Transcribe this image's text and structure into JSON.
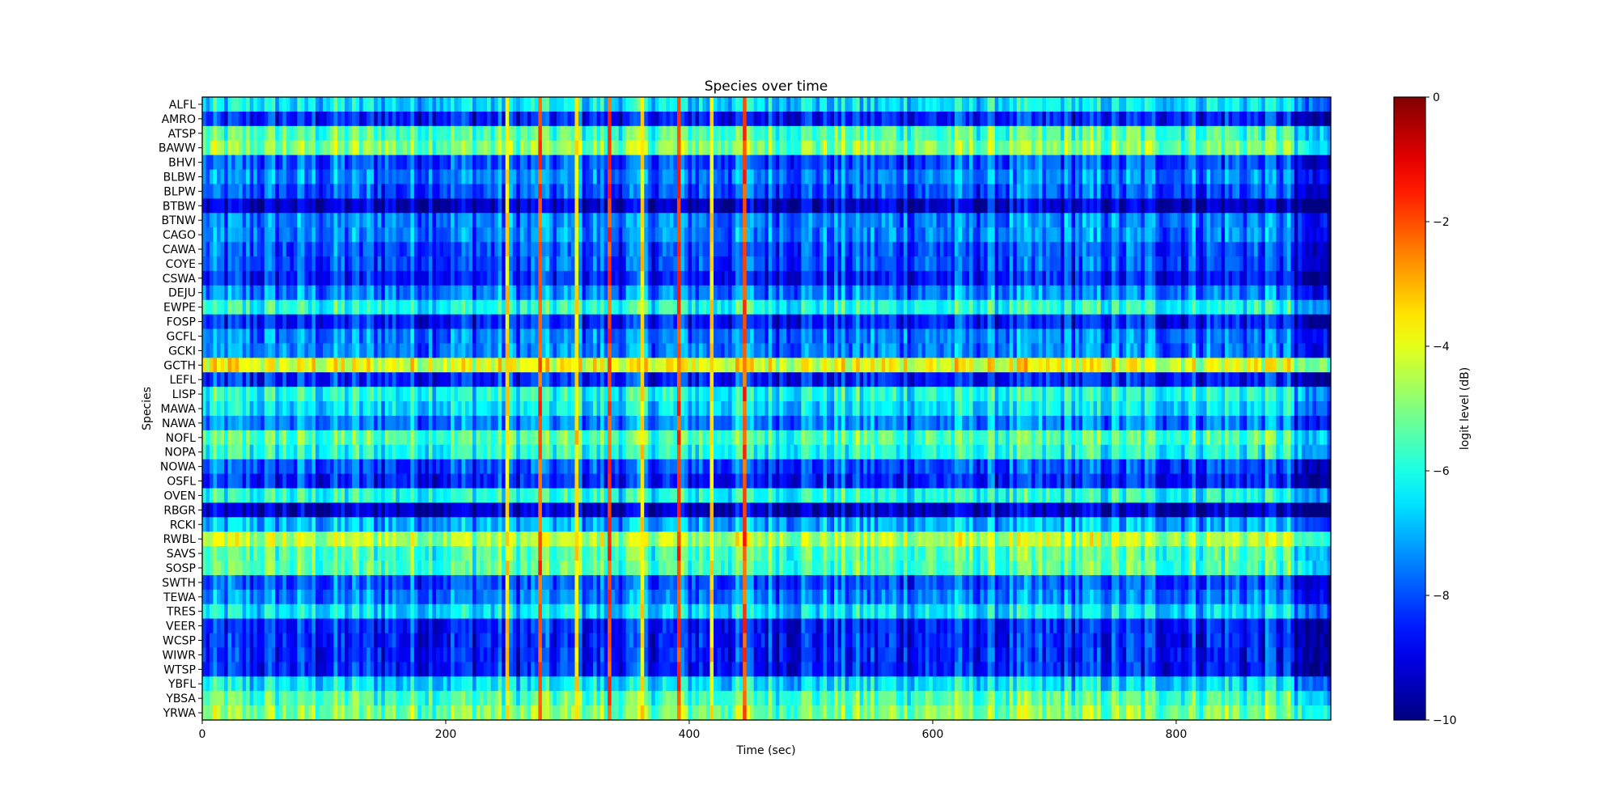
{
  "chart_data": {
    "type": "heatmap",
    "title": "Species over time",
    "xlabel": "Time (sec)",
    "ylabel": "Species",
    "xlim": [
      0,
      927
    ],
    "xticks": [
      0,
      200,
      400,
      600,
      800
    ],
    "bin_sec": 3,
    "species": [
      "ALFL",
      "AMRO",
      "ATSP",
      "BAWW",
      "BHVI",
      "BLBW",
      "BLPW",
      "BTBW",
      "BTNW",
      "CAGO",
      "CAWA",
      "COYE",
      "CSWA",
      "DEJU",
      "EWPE",
      "FOSP",
      "GCFL",
      "GCKI",
      "GCTH",
      "LEFL",
      "LISP",
      "MAWA",
      "NAWA",
      "NOFL",
      "NOPA",
      "NOWA",
      "OSFL",
      "OVEN",
      "RBGR",
      "RCKI",
      "RWBL",
      "SAVS",
      "SOSP",
      "SWTH",
      "TEWA",
      "TRES",
      "VEER",
      "WCSP",
      "WIWR",
      "WTSP",
      "YBFL",
      "YBSA",
      "YRWA"
    ],
    "mean_level_db": [
      -6.5,
      -8.5,
      -5.5,
      -5.0,
      -8.0,
      -7.5,
      -8.0,
      -9.3,
      -7.5,
      -7.5,
      -8.0,
      -8.0,
      -8.5,
      -7.5,
      -6.0,
      -8.5,
      -7.5,
      -7.5,
      -4.0,
      -8.5,
      -6.0,
      -6.5,
      -7.5,
      -5.5,
      -6.0,
      -8.0,
      -8.5,
      -6.0,
      -9.3,
      -7.0,
      -4.5,
      -5.5,
      -5.5,
      -8.0,
      -7.5,
      -6.5,
      -8.5,
      -8.5,
      -8.5,
      -8.5,
      -6.5,
      -5.5,
      -5.0
    ],
    "spike_times_sec": [
      250,
      278,
      306,
      334,
      362,
      390,
      418,
      446
    ],
    "spike_levels_db": [
      -3.5,
      -2.0,
      -3.5,
      -2.0,
      -3.5,
      -2.0,
      -3.5,
      -2.0
    ],
    "quiet_after_sec": 896,
    "variation_db": 1.6,
    "colorbar": {
      "label": "logit level (dB)",
      "range": [
        -10,
        0
      ],
      "ticks": [
        0,
        -2,
        -4,
        -6,
        -8,
        -10
      ],
      "tick_labels": [
        "0",
        "−2",
        "−4",
        "−6",
        "−8",
        "−10"
      ],
      "colormap": "jet"
    },
    "xtick_labels": [
      "0",
      "200",
      "400",
      "600",
      "800"
    ]
  }
}
